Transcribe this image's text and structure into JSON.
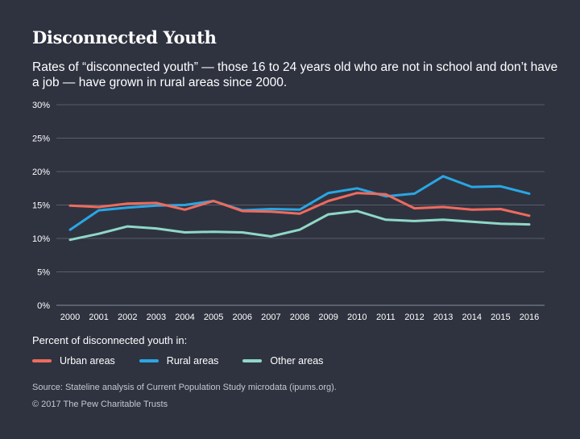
{
  "title": "Disconnected Youth",
  "subtitle": "Rates of “disconnected youth” — those 16 to 24 years old who are not in school and don’t have a job — have grown in rural areas since 2000.",
  "legend_title": "Percent of disconnected youth in:",
  "source": "Source: Stateline analysis of Current Population Study microdata (ipums.org).",
  "copyright": "© 2017 The Pew Charitable Trusts",
  "colors": {
    "background": "#2f3340",
    "grid": "#5a5e6b",
    "urban": "#ee6b5d",
    "rural": "#2aa6e3",
    "other": "#8fd8c6"
  },
  "chart_data": {
    "type": "line",
    "x": [
      "2000",
      "2001",
      "2002",
      "2003",
      "2004",
      "2005",
      "2006",
      "2007",
      "2008",
      "2009",
      "2010",
      "2011",
      "2012",
      "2013",
      "2014",
      "2015",
      "2016"
    ],
    "ylim": [
      0,
      30
    ],
    "yticks": [
      0,
      5,
      10,
      15,
      20,
      25,
      30
    ],
    "ytick_labels": [
      "0%",
      "5%",
      "10%",
      "15%",
      "20%",
      "25%",
      "30%"
    ],
    "grid": true,
    "legend_position": "bottom",
    "series": [
      {
        "name": "Urban areas",
        "color": "#ee6b5d",
        "values": [
          14.9,
          14.7,
          15.2,
          15.3,
          14.3,
          15.6,
          14.1,
          14.0,
          13.7,
          15.6,
          16.8,
          16.6,
          14.5,
          14.7,
          14.3,
          14.4,
          13.4
        ]
      },
      {
        "name": "Rural areas",
        "color": "#2aa6e3",
        "values": [
          11.3,
          14.2,
          14.6,
          14.9,
          15.0,
          15.6,
          14.2,
          14.4,
          14.3,
          16.8,
          17.5,
          16.3,
          16.7,
          19.3,
          17.7,
          17.8,
          16.7
        ]
      },
      {
        "name": "Other areas",
        "color": "#8fd8c6",
        "values": [
          9.8,
          10.7,
          11.8,
          11.5,
          10.9,
          11.0,
          10.9,
          10.3,
          11.3,
          13.6,
          14.1,
          12.8,
          12.6,
          12.8,
          12.5,
          12.2,
          12.1
        ]
      }
    ]
  }
}
